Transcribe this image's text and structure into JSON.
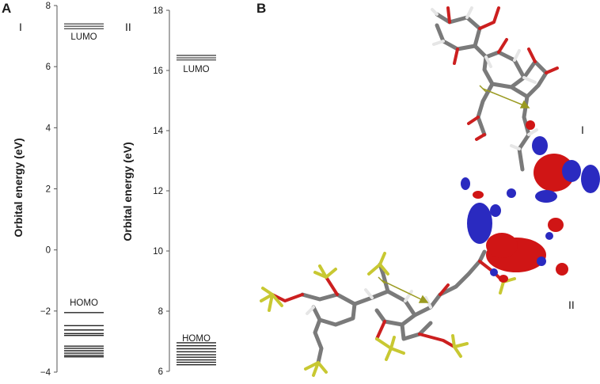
{
  "figure": {
    "panel_a_label": "A",
    "panel_b_label": "B"
  },
  "chart_data": [
    {
      "type": "energy-level-diagram",
      "title": "I",
      "ylabel": "Orbital energy (eV)",
      "ylim": [
        -4,
        8
      ],
      "yticks": [
        "8",
        "6",
        "4",
        "2",
        "0",
        "−2",
        "−4"
      ],
      "lumo_label": "LUMO",
      "homo_label": "HOMO",
      "unoccupied_levels": [
        7.4,
        7.32,
        7.24
      ],
      "occupied_levels": [
        -2.05,
        -2.48,
        -2.62,
        -2.74,
        -2.8,
        -3.15,
        -3.22,
        -3.3,
        -3.38,
        -3.45,
        -3.5
      ]
    },
    {
      "type": "energy-level-diagram",
      "title": "II",
      "ylabel": "Orbital energy (eV)",
      "ylim": [
        6,
        18
      ],
      "yticks": [
        "18",
        "16",
        "14",
        "12",
        "10",
        "8",
        "6"
      ],
      "lumo_label": "LUMO",
      "homo_label": "HOMO",
      "unoccupied_levels": [
        16.5,
        16.42,
        16.35
      ],
      "occupied_levels": [
        6.95,
        6.85,
        6.75,
        6.65,
        6.55,
        6.47,
        6.38,
        6.3,
        6.22
      ]
    }
  ],
  "molecule": {
    "label_top": "I",
    "label_bottom": "II",
    "colors": {
      "carbon": "#7a7a7a",
      "oxygen": "#cc1f1f",
      "hydrogen": "#e6e6e6",
      "sulfur": "#c8c832",
      "lobe_red": "#d01515",
      "lobe_blue": "#2a2ac0",
      "dipole": "#9a9a20"
    }
  }
}
